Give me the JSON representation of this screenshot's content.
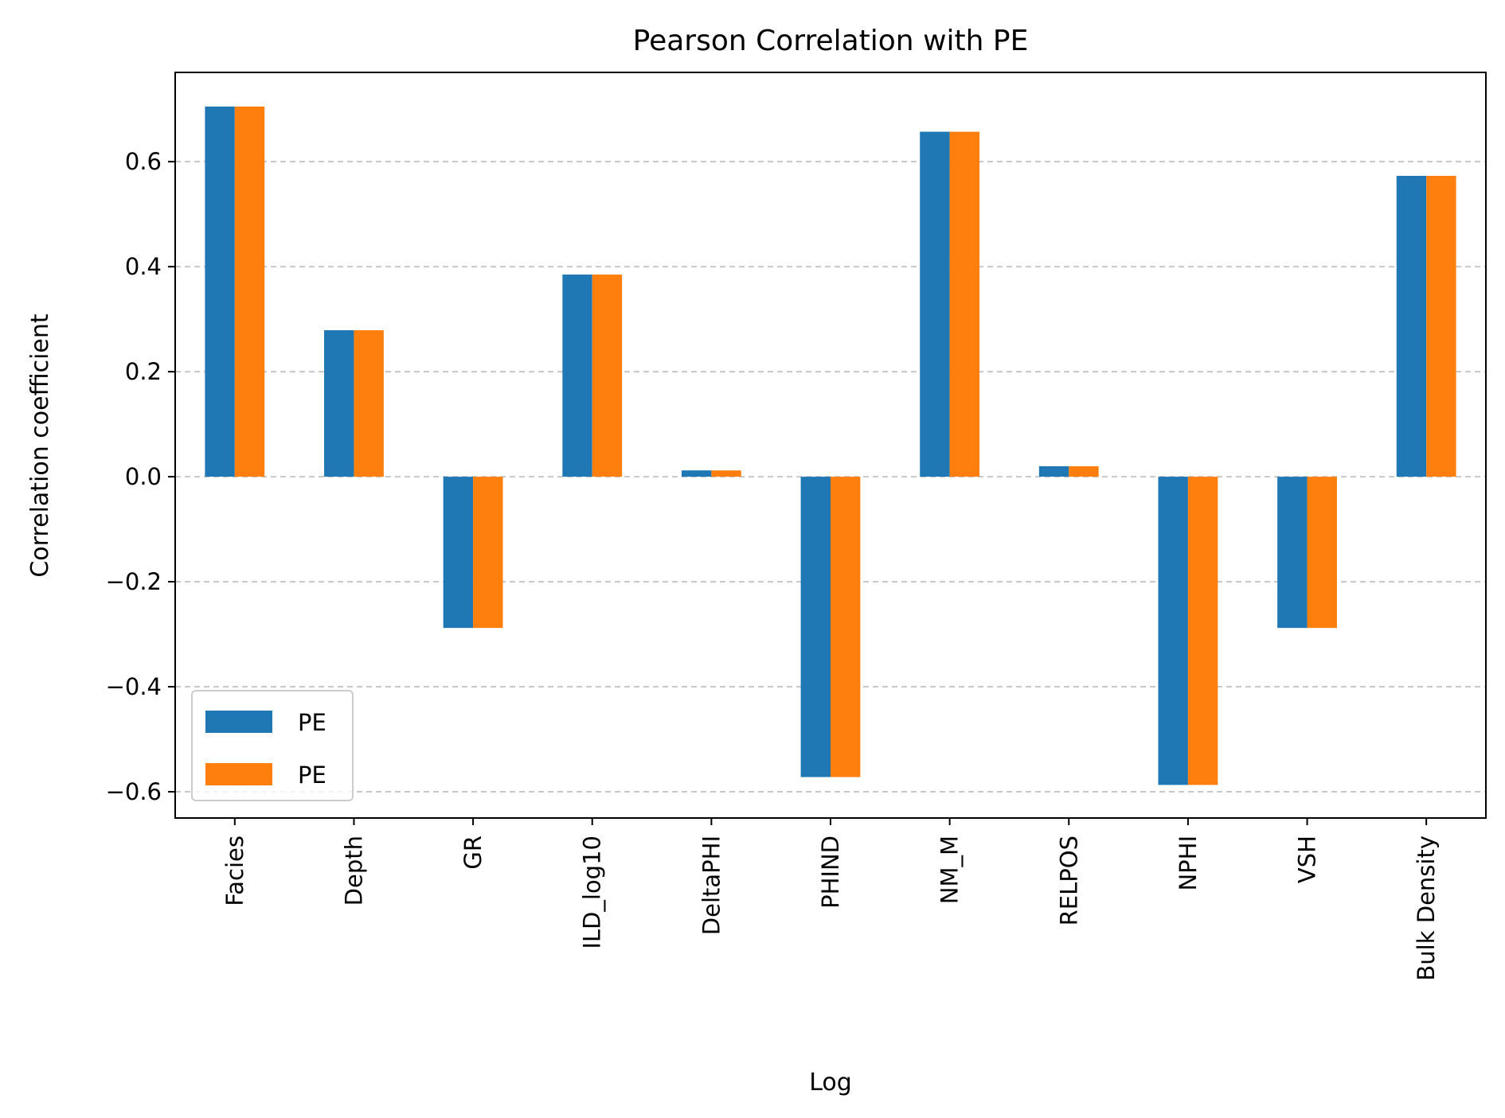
{
  "chart_data": {
    "type": "bar",
    "title": "Pearson Correlation with PE",
    "xlabel": "Log",
    "ylabel": "Correlation coefficient",
    "categories": [
      "Facies",
      "Depth",
      "GR",
      "ILD_log10",
      "DeltaPHI",
      "PHIND",
      "NM_M",
      "RELPOS",
      "NPHI",
      "VSH",
      "Bulk Density"
    ],
    "series": [
      {
        "name": "PE",
        "color": "#1f77b4",
        "values": [
          0.705,
          0.279,
          -0.288,
          0.385,
          0.012,
          -0.572,
          0.657,
          0.02,
          -0.587,
          -0.288,
          0.573
        ]
      },
      {
        "name": "PE",
        "color": "#ff7f0e",
        "values": [
          0.705,
          0.279,
          -0.288,
          0.385,
          0.012,
          -0.572,
          0.657,
          0.02,
          -0.587,
          -0.288,
          0.573
        ]
      }
    ],
    "ylim": [
      -0.65,
      0.77
    ],
    "yticks": [
      -0.6,
      -0.4,
      -0.2,
      0.0,
      0.2,
      0.4,
      0.6
    ],
    "ytick_labels": [
      "−0.6",
      "−0.4",
      "−0.2",
      "0.0",
      "0.2",
      "0.4",
      "0.6"
    ],
    "grid": "y dashed",
    "legend_position": "lower-left"
  }
}
